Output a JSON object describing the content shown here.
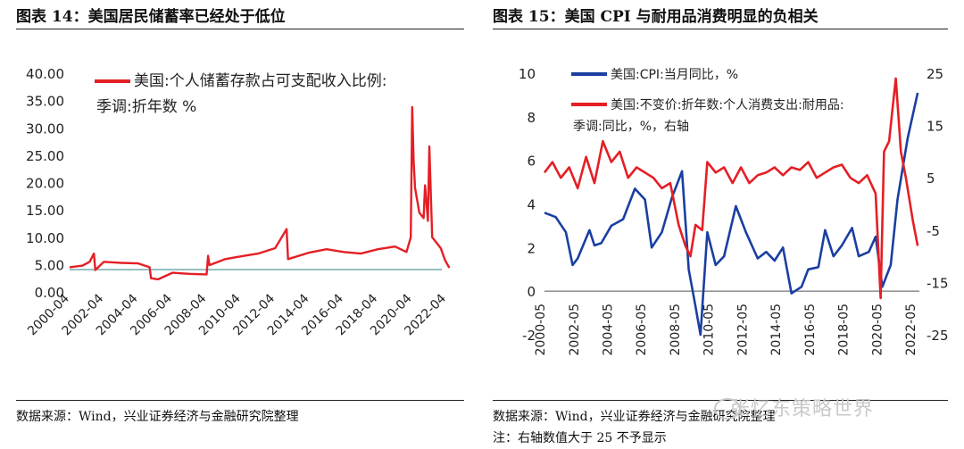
{
  "left": {
    "title": "图表 14：美国居民储蓄率已经处于低位",
    "source": "数据来源：Wind，兴业证券经济与金融研究院整理"
  },
  "right": {
    "title": "图表 15：美国 CPI 与耐用品消费明显的负相关",
    "source": "数据来源：Wind，兴业证券经济与金融研究院整理",
    "note": "注：右轴数值大于 25 不予显示"
  },
  "watermark": "张忆东策略世界",
  "colors": {
    "red": "#e41f25",
    "blue": "#1a3fa0"
  },
  "chart_data": [
    {
      "type": "line",
      "ylim": [
        0,
        40
      ],
      "yticks": [
        "0.00",
        "5.00",
        "10.00",
        "15.00",
        "20.00",
        "25.00",
        "30.00",
        "35.00",
        "40.00"
      ],
      "xticks": [
        "2000-04",
        "2002-04",
        "2004-04",
        "2006-04",
        "2008-04",
        "2010-04",
        "2012-04",
        "2014-04",
        "2016-04",
        "2018-04",
        "2020-04",
        "2022-04"
      ],
      "legend_position": "top",
      "series": [
        {
          "name": "美国:个人储蓄存款占可支配收入比例:季调:折年数 %",
          "color": "#e41f25",
          "x": [
            "2000-04",
            "2001-01",
            "2001-06",
            "2001-09",
            "2001-10",
            "2002-04",
            "2003-04",
            "2004-04",
            "2004-12",
            "2005-01",
            "2005-06",
            "2006-04",
            "2007-04",
            "2008-04",
            "2008-05",
            "2008-06",
            "2009-05",
            "2010-04",
            "2011-04",
            "2012-04",
            "2012-12",
            "2013-01",
            "2014-04",
            "2015-04",
            "2016-04",
            "2017-04",
            "2018-04",
            "2019-04",
            "2019-12",
            "2020-03",
            "2020-04",
            "2020-05",
            "2020-06",
            "2020-09",
            "2020-12",
            "2021-01",
            "2021-03",
            "2021-04",
            "2021-06",
            "2021-09",
            "2021-12",
            "2022-03",
            "2022-06"
          ],
          "values": [
            4.5,
            4.8,
            5.5,
            7.0,
            4.0,
            5.5,
            5.3,
            5.2,
            4.5,
            2.5,
            2.3,
            3.5,
            3.3,
            3.2,
            6.6,
            4.9,
            6.0,
            6.5,
            7.0,
            8.0,
            11.5,
            6.0,
            7.2,
            7.8,
            7.3,
            7.0,
            7.8,
            8.3,
            7.3,
            10.0,
            33.8,
            24.0,
            19.0,
            14.5,
            13.5,
            19.5,
            13.0,
            26.6,
            10.0,
            9.0,
            8.0,
            5.8,
            4.4
          ]
        }
      ]
    },
    {
      "type": "line",
      "ylim": [
        -2,
        10
      ],
      "y2lim": [
        -25,
        25
      ],
      "yticks": [
        "-2",
        "0",
        "2",
        "4",
        "6",
        "8",
        "10"
      ],
      "y2ticks": [
        "-25",
        "-15",
        "-5",
        "5",
        "15",
        "25"
      ],
      "xticks": [
        "2000-05",
        "2002-05",
        "2004-05",
        "2006-05",
        "2008-05",
        "2010-05",
        "2012-05",
        "2014-05",
        "2016-05",
        "2018-05",
        "2020-05",
        "2022-05"
      ],
      "legend_position": "top",
      "series": [
        {
          "name": "美国:CPI:当月同比，%",
          "axis": "left",
          "color": "#1a3fa0",
          "x": [
            2000.33,
            2001.0,
            2001.6,
            2002.0,
            2002.3,
            2003.0,
            2003.3,
            2003.7,
            2004.3,
            2005.0,
            2005.7,
            2006.3,
            2006.7,
            2007.3,
            2007.9,
            2008.5,
            2008.9,
            2009.3,
            2009.6,
            2010.0,
            2010.5,
            2011.0,
            2011.7,
            2012.3,
            2013.0,
            2013.5,
            2014.0,
            2014.5,
            2015.0,
            2015.6,
            2016.0,
            2016.6,
            2017.0,
            2017.5,
            2018.0,
            2018.6,
            2019.0,
            2019.6,
            2020.0,
            2020.4,
            2020.9,
            2021.3,
            2021.9,
            2022.5
          ],
          "values": [
            3.6,
            3.4,
            2.7,
            1.2,
            1.5,
            2.8,
            2.1,
            2.2,
            3.0,
            3.3,
            4.7,
            4.2,
            2.0,
            2.7,
            4.3,
            5.5,
            1.0,
            -0.7,
            -2.0,
            2.7,
            1.2,
            1.6,
            3.9,
            2.7,
            1.5,
            1.8,
            1.4,
            2.0,
            -0.1,
            0.2,
            1.0,
            1.1,
            2.8,
            1.6,
            2.1,
            2.9,
            1.6,
            1.8,
            2.5,
            0.2,
            1.2,
            4.2,
            7.0,
            9.1
          ]
        },
        {
          "name": "美国:不变价:折年数:个人消费支出:耐用品:季调:同比，%，右轴",
          "axis": "right",
          "color": "#e41f25",
          "x": [
            2000.33,
            2000.8,
            2001.3,
            2001.8,
            2002.3,
            2002.8,
            2003.3,
            2003.8,
            2004.3,
            2004.8,
            2005.3,
            2005.8,
            2006.3,
            2006.8,
            2007.3,
            2007.8,
            2008.3,
            2008.7,
            2009.0,
            2009.3,
            2009.7,
            2010.0,
            2010.5,
            2011.0,
            2011.5,
            2012.0,
            2012.5,
            2013.0,
            2013.5,
            2014.0,
            2014.5,
            2015.0,
            2015.5,
            2016.0,
            2016.5,
            2017.0,
            2017.5,
            2018.0,
            2018.5,
            2019.0,
            2019.5,
            2020.0,
            2020.3,
            2020.5,
            2020.8,
            2021.0,
            2021.2,
            2021.5,
            2021.8,
            2022.2,
            2022.5
          ],
          "values": [
            6.0,
            8.0,
            5.0,
            7.0,
            3.0,
            9.0,
            4.0,
            12.0,
            8.0,
            10.0,
            5.0,
            7.0,
            6.0,
            5.0,
            3.0,
            4.0,
            -4.0,
            -8.0,
            -10.0,
            -4.0,
            -5.0,
            8.0,
            6.0,
            7.0,
            4.0,
            7.0,
            4.0,
            5.5,
            6.0,
            7.0,
            5.5,
            7.0,
            6.5,
            8.0,
            5.0,
            6.0,
            7.0,
            7.5,
            5.0,
            4.0,
            5.5,
            2.0,
            -18.0,
            10.0,
            12.0,
            18.0,
            24.0,
            10.0,
            5.0,
            -3.0,
            -8.0
          ]
        }
      ]
    }
  ]
}
